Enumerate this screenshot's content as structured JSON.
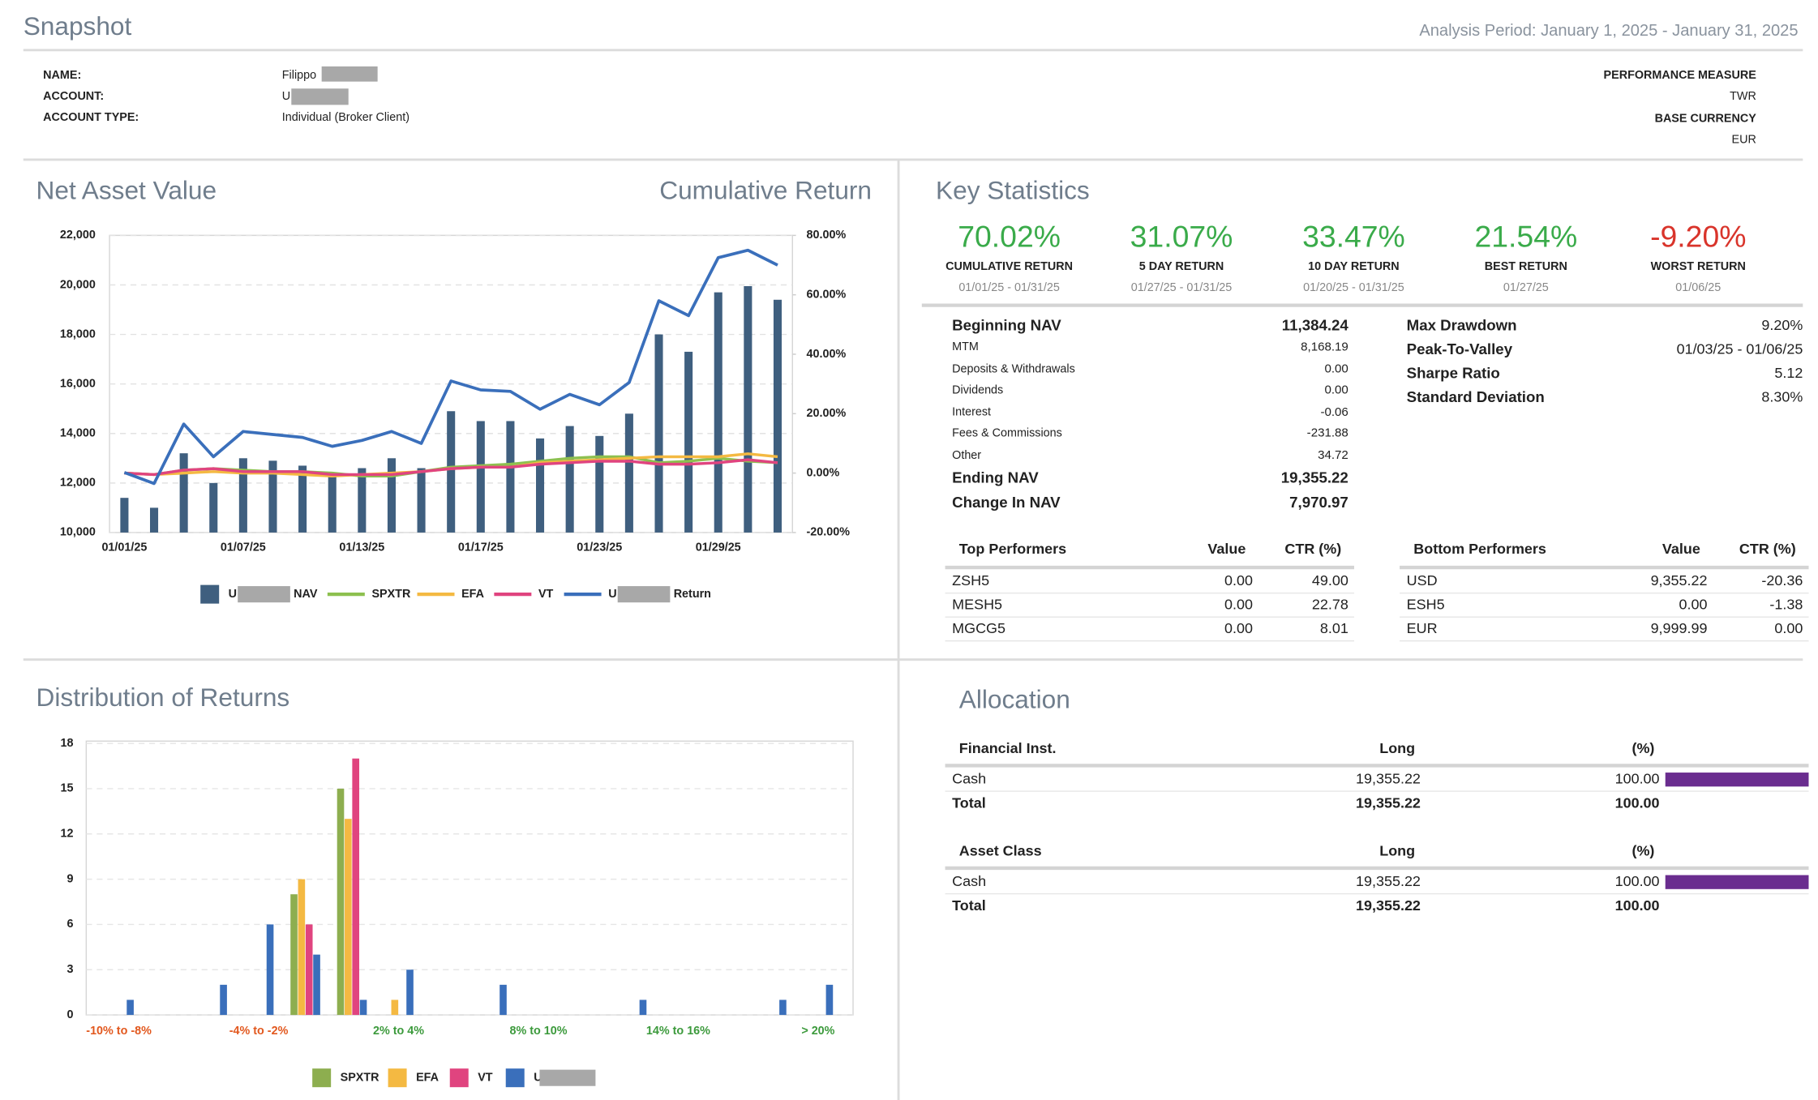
{
  "header": {
    "title": "Snapshot",
    "analysis_period": "Analysis Period: January 1, 2025 - January 31, 2025",
    "fields": [
      {
        "label": "NAME:",
        "value": "Filippo"
      },
      {
        "label": "ACCOUNT:",
        "value": "U"
      },
      {
        "label": "ACCOUNT TYPE:",
        "value": "Individual (Broker Client)"
      }
    ],
    "right_fields": [
      {
        "label": "PERFORMANCE MEASURE",
        "value": "TWR"
      },
      {
        "label": "BASE CURRENCY",
        "value": "EUR"
      }
    ]
  },
  "chart_data": [
    {
      "type": "bar",
      "title": "Net Asset Value",
      "y2label": "Cumulative Return",
      "categories": [
        "01/01/25",
        null,
        null,
        null,
        "01/07/25",
        null,
        null,
        null,
        "01/13/25",
        null,
        null,
        null,
        "01/17/25",
        null,
        null,
        null,
        "01/23/25",
        null,
        null,
        null,
        "01/29/25",
        null,
        null
      ],
      "ylim": [
        10000,
        22000
      ],
      "yticks": [
        {
          "value": 10000,
          "label": "10,000"
        },
        {
          "value": 12000,
          "label": "12,000"
        },
        {
          "value": 14000,
          "label": "14,000"
        },
        {
          "value": 16000,
          "label": "16,000"
        },
        {
          "value": 18000,
          "label": "18,000"
        },
        {
          "value": 20000,
          "label": "20,000"
        },
        {
          "value": 22000,
          "label": "22,000"
        }
      ],
      "y2lim": [
        -20,
        80
      ],
      "y2ticks": [
        {
          "value": -20,
          "label": "-20.00%"
        },
        {
          "value": 0,
          "label": "0.00%"
        },
        {
          "value": 20,
          "label": "20.00%"
        },
        {
          "value": 40,
          "label": "40.00%"
        },
        {
          "value": 60,
          "label": "60.00%"
        },
        {
          "value": 80,
          "label": "80.00%"
        }
      ],
      "grid": true,
      "series": [
        {
          "name": "NAV",
          "prefix": "U",
          "type": "bar",
          "color": "#3f5f7f",
          "values": [
            11400,
            11000,
            13200,
            12000,
            13000,
            12900,
            12700,
            12400,
            12600,
            13000,
            12600,
            14900,
            14500,
            14500,
            13800,
            14300,
            13900,
            14800,
            18000,
            17300,
            19700,
            19950,
            19400
          ]
        },
        {
          "name": "SPXTR",
          "type": "line",
          "axis": "y2",
          "color": "#8dc04f",
          "values": [
            0,
            -0.5,
            1,
            1.5,
            1,
            0.5,
            0.5,
            0,
            -1,
            -1,
            0.5,
            2,
            2.5,
            3,
            4,
            5,
            5.5,
            5.5,
            3.5,
            4,
            5,
            4,
            3.5
          ]
        },
        {
          "name": "EFA",
          "type": "line",
          "axis": "y2",
          "color": "#f4b942",
          "values": [
            0,
            -0.5,
            0,
            0.5,
            0,
            0,
            -0.5,
            -1,
            -0.5,
            0,
            0.5,
            1.5,
            2,
            2,
            3.5,
            4,
            4.5,
            5,
            5.5,
            5.5,
            5.5,
            6.5,
            5.5
          ]
        },
        {
          "name": "VT",
          "type": "line",
          "axis": "y2",
          "color": "#e0447f",
          "values": [
            0,
            -0.5,
            1,
            1.5,
            0.5,
            0.5,
            0.5,
            -0.5,
            -0.5,
            -0.5,
            0.5,
            1.5,
            2,
            2,
            3,
            3.5,
            4,
            4,
            3,
            3,
            3.5,
            4.5,
            3.5
          ]
        },
        {
          "name": "Return",
          "prefix": "U",
          "type": "line",
          "axis": "y2",
          "color": "#3a6fbb",
          "values": [
            0.2,
            -3.5,
            16.5,
            5.5,
            14,
            13,
            12,
            9,
            11,
            14,
            10,
            31,
            28,
            27.5,
            21.5,
            26.5,
            23,
            30.5,
            58,
            53,
            72.5,
            75,
            70
          ]
        }
      ]
    },
    {
      "type": "bar",
      "title": "Distribution of Returns",
      "categories": [
        "-10% to -8%",
        null,
        null,
        "-4% to -2%",
        null,
        null,
        "2% to 4%",
        null,
        null,
        "8% to 10%",
        null,
        null,
        "14% to 16%",
        null,
        null,
        "> 20%"
      ],
      "ylim": [
        0,
        18
      ],
      "yticks": [
        0,
        3,
        6,
        9,
        12,
        15,
        18
      ],
      "grid": true,
      "series": [
        {
          "name": "SPXTR",
          "color": "#8dae4f",
          "values": [
            0,
            0,
            0,
            0,
            8,
            15,
            0,
            0,
            0,
            0,
            0,
            0,
            0,
            0,
            0,
            0
          ]
        },
        {
          "name": "EFA",
          "color": "#f4b942",
          "values": [
            0,
            0,
            0,
            0,
            9,
            13,
            1,
            0,
            0,
            0,
            0,
            0,
            0,
            0,
            0,
            0
          ]
        },
        {
          "name": "VT",
          "color": "#e0447f",
          "values": [
            0,
            0,
            0,
            0,
            6,
            17,
            0,
            0,
            0,
            0,
            0,
            0,
            0,
            0,
            0,
            0
          ]
        },
        {
          "name": "U",
          "redacted": true,
          "color": "#3a6fbb",
          "values": [
            1,
            0,
            2,
            6,
            4,
            1,
            3,
            0,
            2,
            0,
            0,
            1,
            0,
            0,
            1,
            2
          ]
        }
      ]
    }
  ],
  "key_statistics": {
    "title": "Key Statistics",
    "highlights": [
      {
        "value": "70.02%",
        "label": "CUMULATIVE RETURN",
        "period": "01/01/25 - 01/31/25"
      },
      {
        "value": "31.07%",
        "label": "5 DAY RETURN",
        "period": "01/27/25 - 01/31/25"
      },
      {
        "value": "33.47%",
        "label": "10 DAY RETURN",
        "period": "01/20/25 - 01/31/25"
      },
      {
        "value": "21.54%",
        "label": "BEST RETURN",
        "period": "01/27/25"
      },
      {
        "value": "-9.20%",
        "label": "WORST RETURN",
        "period": "01/06/25"
      }
    ],
    "nav_rows": [
      [
        "Beginning NAV",
        "11,384.24"
      ],
      [
        "MTM",
        "8,168.19"
      ],
      [
        "Deposits & Withdrawals",
        "0.00"
      ],
      [
        "Dividends",
        "0.00"
      ],
      [
        "Interest",
        "-0.06"
      ],
      [
        "Fees & Commissions",
        "-231.88"
      ],
      [
        "Other",
        "34.72"
      ],
      [
        "Ending NAV",
        "19,355.22"
      ],
      [
        "Change In NAV",
        "7,970.97"
      ]
    ],
    "risk_rows": [
      [
        "Max Drawdown",
        "9.20%"
      ],
      [
        "Peak-To-Valley",
        "01/03/25 - 01/06/25"
      ],
      [
        "Sharpe Ratio",
        "5.12"
      ],
      [
        "Standard Deviation",
        "8.30%"
      ]
    ],
    "top_performers": {
      "columns": [
        "Top Performers",
        "Value",
        "CTR (%)"
      ],
      "rows": [
        [
          "ZSH5",
          "0.00",
          "49.00"
        ],
        [
          "MESH5",
          "0.00",
          "22.78"
        ],
        [
          "MGCG5",
          "0.00",
          "8.01"
        ]
      ]
    },
    "bottom_performers": {
      "columns": [
        "Bottom Performers",
        "Value",
        "CTR (%)"
      ],
      "rows": [
        [
          "USD",
          "9,355.22",
          "-20.36"
        ],
        [
          "ESH5",
          "0.00",
          "-1.38"
        ],
        [
          "EUR",
          "9,999.99",
          "0.00"
        ]
      ]
    }
  },
  "allocation": {
    "title": "Allocation",
    "tables": [
      {
        "columns": [
          "Financial Inst.",
          "Long",
          "(%)"
        ],
        "rows": [
          [
            "Cash",
            "19,355.22",
            "100.00"
          ]
        ],
        "total": [
          "Total",
          "19,355.22",
          "100.00"
        ]
      },
      {
        "columns": [
          "Asset Class",
          "Long",
          "(%)"
        ],
        "rows": [
          [
            "Cash",
            "19,355.22",
            "100.00"
          ]
        ],
        "total": [
          "Total",
          "19,355.22",
          "100.00"
        ]
      }
    ]
  }
}
